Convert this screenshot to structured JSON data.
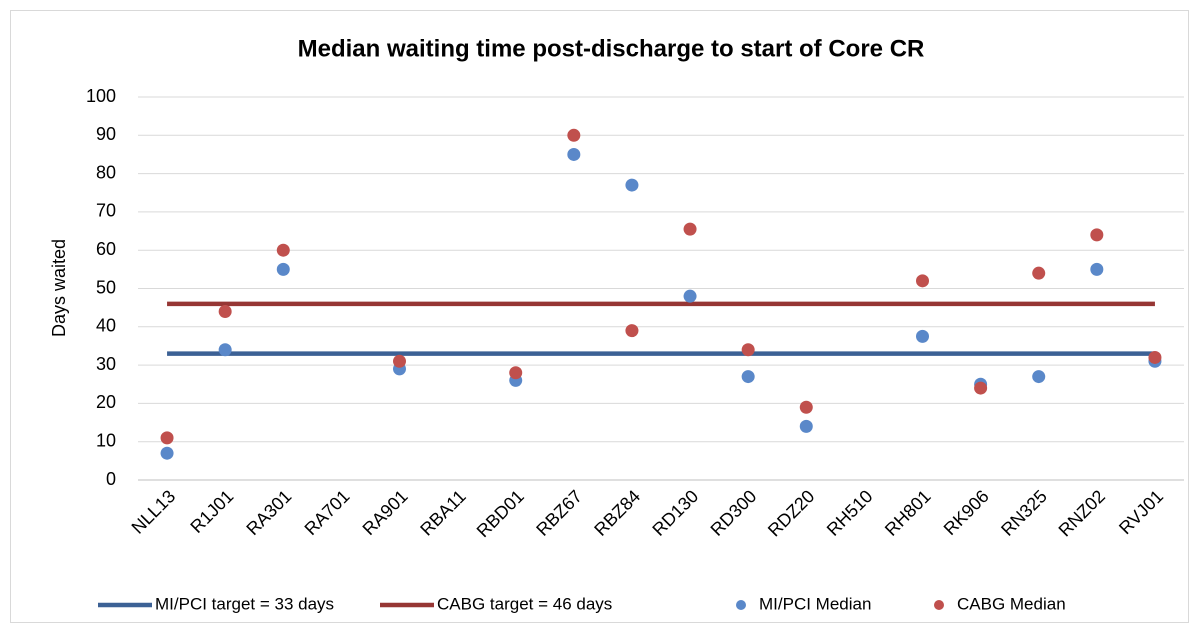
{
  "chart_data": {
    "type": "scatter",
    "title": "Median waiting time post-discharge to start of Core CR",
    "y_label": "Days waited",
    "categories": [
      "NLL13",
      "R1J01",
      "RA301",
      "RA701",
      "RA901",
      "RBA11",
      "RBD01",
      "RBZ67",
      "RBZ84",
      "RD130",
      "RD300",
      "RDZ20",
      "RH510",
      "RH801",
      "RK906",
      "RN325",
      "RNZ02",
      "RVJ01"
    ],
    "ylim": [
      0,
      100
    ],
    "yticks": [
      0,
      10,
      20,
      30,
      40,
      50,
      60,
      70,
      80,
      90,
      100
    ],
    "grid": true,
    "legend": "bottom",
    "series": [
      {
        "name": "MI/PCI target = 33 days",
        "style": "line",
        "color": "#3c6195",
        "values": [
          33,
          33,
          33,
          33,
          33,
          33,
          33,
          33,
          33,
          33,
          33,
          33,
          33,
          33,
          33,
          33,
          33,
          33
        ]
      },
      {
        "name": "CABG target = 46 days",
        "style": "line",
        "color": "#963634",
        "values": [
          46,
          46,
          46,
          46,
          46,
          46,
          46,
          46,
          46,
          46,
          46,
          46,
          46,
          46,
          46,
          46,
          46,
          46
        ]
      },
      {
        "name": "MI/PCI Median",
        "style": "marker",
        "color": "#5a88c9",
        "values": [
          7,
          34,
          55,
          null,
          29,
          null,
          26,
          85,
          77,
          48,
          27,
          14,
          null,
          37.5,
          25,
          27,
          55,
          31
        ]
      },
      {
        "name": "CABG Median",
        "style": "marker",
        "color": "#c0504d",
        "values": [
          11,
          44,
          60,
          null,
          31,
          null,
          28,
          90,
          39,
          65.5,
          34,
          19,
          null,
          52,
          24,
          54,
          64,
          32
        ]
      }
    ]
  }
}
